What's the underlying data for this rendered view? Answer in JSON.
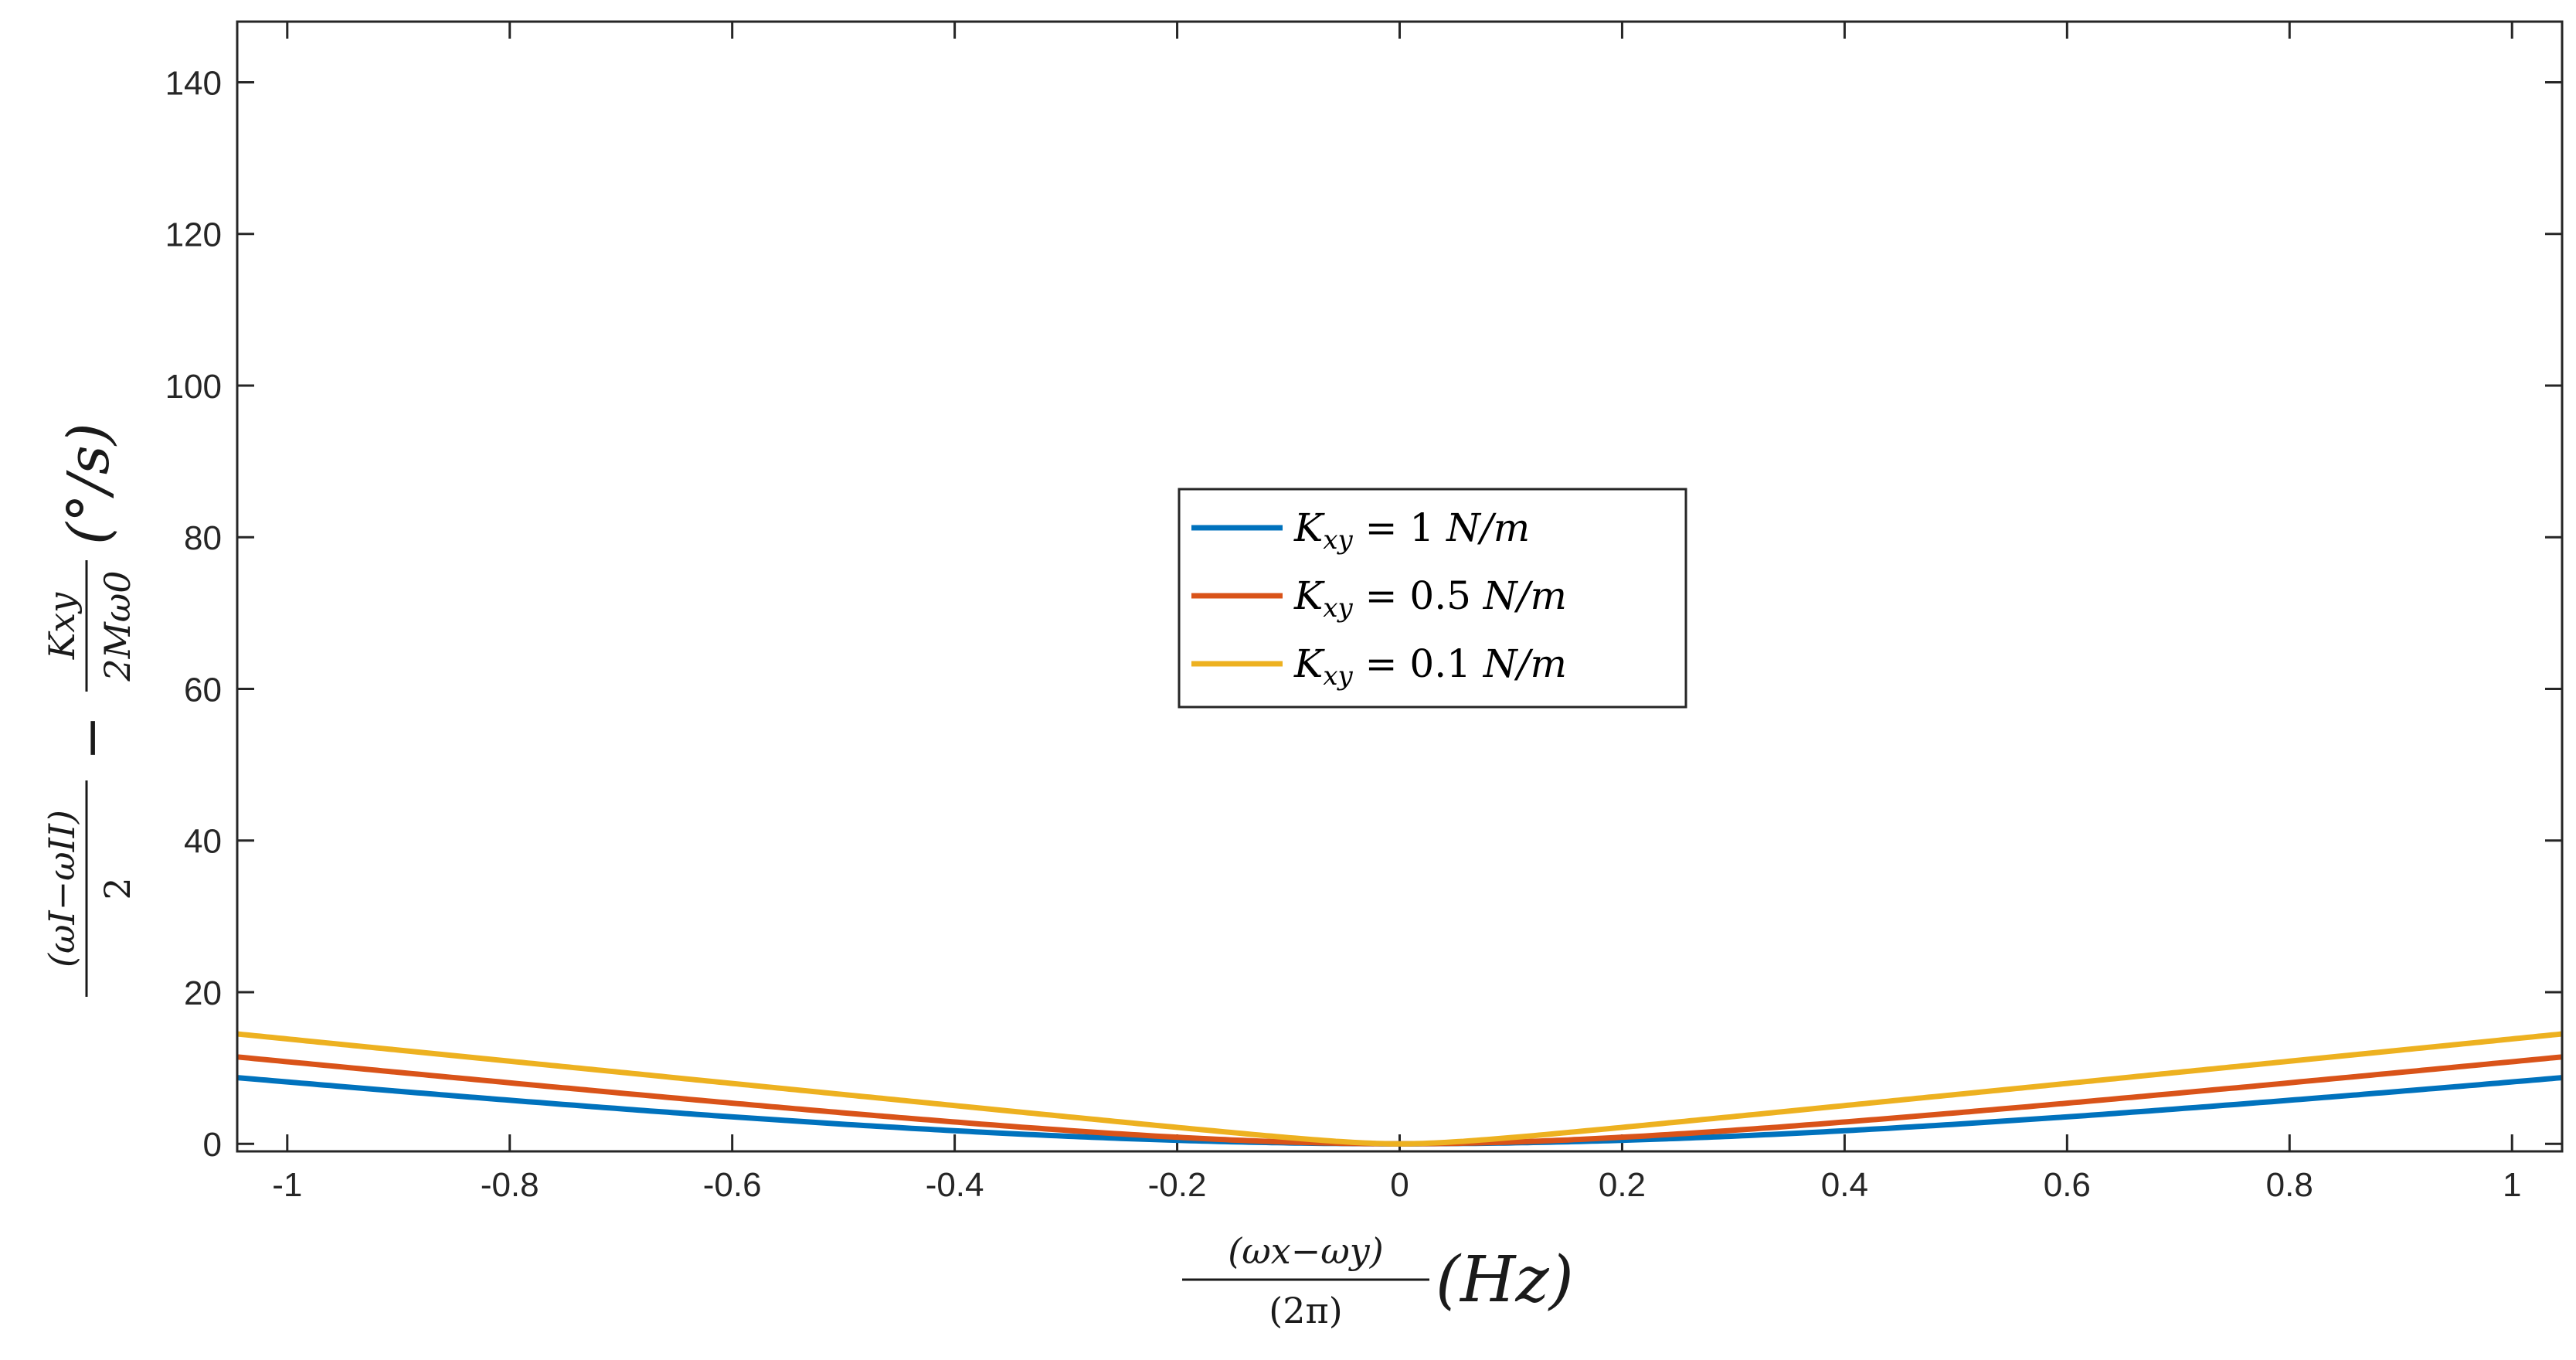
{
  "chart_data": {
    "type": "line",
    "title": "",
    "xlabel": {
      "frac_num": "(ωx−ωy)",
      "frac_den": "(2π)",
      "unit": "(Hz)"
    },
    "ylabel": {
      "frac1_num": "(ωI−ωII)",
      "frac1_den": "2",
      "minus": "−",
      "frac2_num": "Kxy",
      "frac2_den": "2Mω0",
      "unit": "(°/s)"
    },
    "xlim": [
      -1.045,
      1.045
    ],
    "ylim": [
      -1,
      148
    ],
    "xticks": [
      -1,
      -0.8,
      -0.6,
      -0.4,
      -0.2,
      0,
      0.2,
      0.4,
      0.6,
      0.8,
      1
    ],
    "xtick_labels": [
      "-1",
      "-0.8",
      "-0.6",
      "-0.4",
      "-0.2",
      "0",
      "0.2",
      "0.4",
      "0.6",
      "0.8",
      "1"
    ],
    "yticks": [
      0,
      20,
      40,
      60,
      80,
      100,
      120,
      140
    ],
    "ytick_labels": [
      "0",
      "20",
      "40",
      "60",
      "80",
      "100",
      "120",
      "140"
    ],
    "legend_position": "center",
    "series": [
      {
        "name": "Kxy = 1 N/m",
        "label_k": "K",
        "label_sub": "xy",
        "label_rest": " = 1 ",
        "label_unit": "N/m",
        "color": "#0072BD",
        "k": 1.0
      },
      {
        "name": "Kxy = 0.5 N/m",
        "label_k": "K",
        "label_sub": "xy",
        "label_rest": " = 0.5 ",
        "label_unit": "N/m",
        "color": "#D95319",
        "k": 0.5
      },
      {
        "name": "Kxy = 0.1 N/m",
        "label_k": "K",
        "label_sub": "xy",
        "label_rest": " = 0.1 ",
        "label_unit": "N/m",
        "color": "#EDB120",
        "k": 0.1
      }
    ],
    "model": {
      "formula": "y = A*(sqrt(k^2 + (B*x)^2) - k)",
      "A": 9.2,
      "B": 1.6
    }
  }
}
